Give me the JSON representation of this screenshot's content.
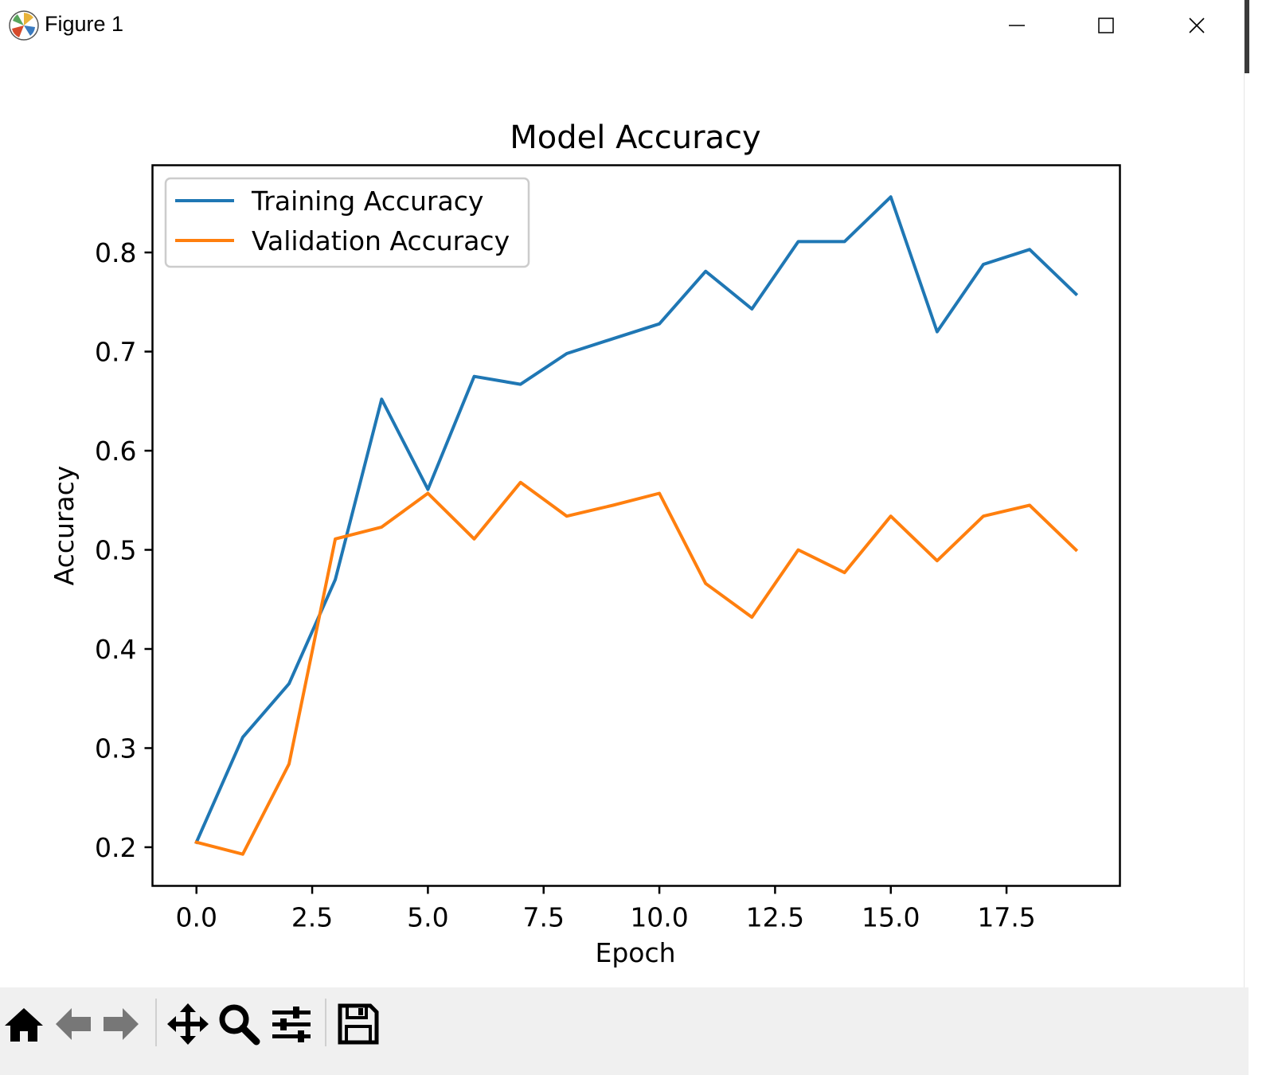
{
  "window": {
    "title": "Figure 1",
    "icons": {
      "app": "matplotlib-logo-icon",
      "minimize": "minimize-icon",
      "maximize": "maximize-icon",
      "close": "close-icon"
    }
  },
  "toolbar": {
    "buttons": [
      {
        "name": "home-button",
        "icon": "home-icon"
      },
      {
        "name": "back-button",
        "icon": "arrow-left-icon"
      },
      {
        "name": "forward-button",
        "icon": "arrow-right-icon"
      },
      {
        "name": "pan-button",
        "icon": "move-icon"
      },
      {
        "name": "zoom-button",
        "icon": "magnifier-icon"
      },
      {
        "name": "configure-subplots-button",
        "icon": "sliders-icon"
      },
      {
        "name": "save-button",
        "icon": "floppy-disk-icon"
      }
    ]
  },
  "chart_data": {
    "type": "line",
    "title": "Model Accuracy",
    "xlabel": "Epoch",
    "ylabel": "Accuracy",
    "xlim": [
      -0.95,
      19.95
    ],
    "ylim": [
      0.161,
      0.888
    ],
    "xticks": [
      "0.0",
      "2.5",
      "5.0",
      "7.5",
      "10.0",
      "12.5",
      "15.0",
      "17.5"
    ],
    "yticks": [
      "0.2",
      "0.3",
      "0.4",
      "0.5",
      "0.6",
      "0.7",
      "0.8"
    ],
    "legend_position": "upper-left",
    "grid": false,
    "x": [
      0,
      1,
      2,
      3,
      4,
      5,
      6,
      7,
      8,
      9,
      10,
      11,
      12,
      13,
      14,
      15,
      16,
      17,
      18,
      19
    ],
    "series": [
      {
        "name": "Training Accuracy",
        "color": "#1f77b4",
        "values": [
          0.205,
          0.311,
          0.365,
          0.47,
          0.652,
          0.561,
          0.675,
          0.667,
          0.698,
          0.713,
          0.728,
          0.781,
          0.743,
          0.811,
          0.811,
          0.856,
          0.72,
          0.788,
          0.803,
          0.758
        ]
      },
      {
        "name": "Validation Accuracy",
        "color": "#ff7f0e",
        "values": [
          0.205,
          0.193,
          0.284,
          0.511,
          0.523,
          0.557,
          0.511,
          0.568,
          0.534,
          0.545,
          0.557,
          0.466,
          0.432,
          0.5,
          0.477,
          0.534,
          0.489,
          0.534,
          0.545,
          0.5
        ]
      }
    ]
  }
}
